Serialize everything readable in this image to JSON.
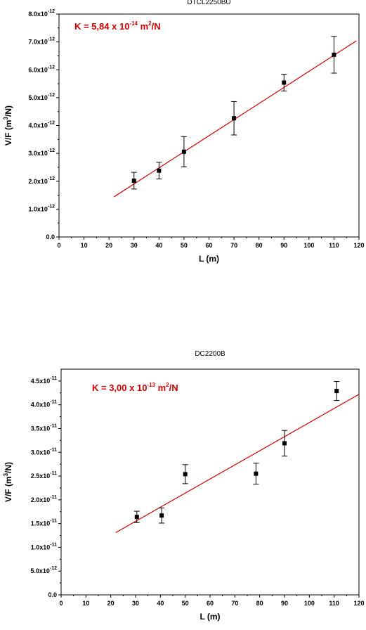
{
  "chart_data": [
    {
      "type": "scatter",
      "title": "DTCL2250BU",
      "xlabel": "L (m)",
      "ylabel": {
        "pre": "V/F (m",
        "sup": "3",
        "post": "/N)"
      },
      "annotation": {
        "pre": "K = 5,84 x 10",
        "sup": "-14",
        "mid": " m",
        "sup2": "2",
        "post": "/N"
      },
      "xlim": [
        0,
        120
      ],
      "ylim": [
        0,
        8e-12
      ],
      "x_ticks": [
        0,
        10,
        20,
        30,
        40,
        50,
        60,
        70,
        80,
        90,
        100,
        110,
        120
      ],
      "y_ticks": [
        {
          "value": 0,
          "mant": "0.0",
          "exp": ""
        },
        {
          "value": 1e-12,
          "mant": "1.0x10",
          "exp": "-12"
        },
        {
          "value": 2e-12,
          "mant": "2.0x10",
          "exp": "-12"
        },
        {
          "value": 3e-12,
          "mant": "3.0x10",
          "exp": "-12"
        },
        {
          "value": 4e-12,
          "mant": "4.0x10",
          "exp": "-12"
        },
        {
          "value": 5e-12,
          "mant": "5.0x10",
          "exp": "-12"
        },
        {
          "value": 6e-12,
          "mant": "6.0x10",
          "exp": "-12"
        },
        {
          "value": 7e-12,
          "mant": "7.0x10",
          "exp": "-12"
        },
        {
          "value": 8e-12,
          "mant": "8.0x10",
          "exp": "-12"
        }
      ],
      "points": [
        {
          "x": 30,
          "y": 2.02e-12,
          "err": 3e-13
        },
        {
          "x": 40,
          "y": 2.38e-12,
          "err": 3e-13
        },
        {
          "x": 50,
          "y": 3.06e-12,
          "err": 5.4e-13
        },
        {
          "x": 70,
          "y": 4.26e-12,
          "err": 6e-13
        },
        {
          "x": 90,
          "y": 5.54e-12,
          "err": 3e-13
        },
        {
          "x": 110,
          "y": 6.54e-12,
          "err": 6.6e-13
        }
      ],
      "fit_line": {
        "x": [
          22,
          119
        ],
        "y": [
          1.44e-12,
          7.04e-12
        ]
      },
      "colors": {
        "fit": "#d00000",
        "annotation": "#d00000",
        "points": "#000000"
      },
      "grid": false
    },
    {
      "type": "scatter",
      "title": "DC2200B",
      "xlabel": "L (m)",
      "ylabel": {
        "pre": "V/F (m",
        "sup": "3",
        "post": "/N)"
      },
      "annotation": {
        "pre": "K = 3,00 x 10",
        "sup": "-13",
        "mid": " m",
        "sup2": "2",
        "post": "/N"
      },
      "xlim": [
        0,
        120
      ],
      "ylim": [
        0,
        4.75e-11
      ],
      "x_ticks": [
        0,
        10,
        20,
        30,
        40,
        50,
        60,
        70,
        80,
        90,
        100,
        110,
        120
      ],
      "y_ticks": [
        {
          "value": 0,
          "mant": "0.0",
          "exp": ""
        },
        {
          "value": 5e-12,
          "mant": "5.0x10",
          "exp": "-12"
        },
        {
          "value": 1e-11,
          "mant": "1.0x10",
          "exp": "-11"
        },
        {
          "value": 1.5e-11,
          "mant": "1.5x10",
          "exp": "-11"
        },
        {
          "value": 2e-11,
          "mant": "2.0x10",
          "exp": "-11"
        },
        {
          "value": 2.5e-11,
          "mant": "2.5x10",
          "exp": "-11"
        },
        {
          "value": 3e-11,
          "mant": "3.0x10",
          "exp": "-11"
        },
        {
          "value": 3.5e-11,
          "mant": "3.5x10",
          "exp": "-11"
        },
        {
          "value": 4e-11,
          "mant": "4.0x10",
          "exp": "-11"
        },
        {
          "value": 4.5e-11,
          "mant": "4.5x10",
          "exp": "-11"
        }
      ],
      "points": [
        {
          "x": 30.5,
          "y": 1.64e-11,
          "err": 1.2e-12
        },
        {
          "x": 40.5,
          "y": 1.67e-11,
          "err": 1.6e-12
        },
        {
          "x": 50,
          "y": 2.54e-11,
          "err": 2e-12
        },
        {
          "x": 78.5,
          "y": 2.55e-11,
          "err": 2.2e-12
        },
        {
          "x": 90,
          "y": 3.19e-11,
          "err": 2.7e-12
        },
        {
          "x": 111,
          "y": 4.29e-11,
          "err": 2e-12
        }
      ],
      "fit_line": {
        "x": [
          22,
          120
        ],
        "y": [
          1.31e-11,
          4.22e-11
        ]
      },
      "colors": {
        "fit": "#d00000",
        "annotation": "#d00000",
        "points": "#000000"
      },
      "grid": false
    }
  ]
}
